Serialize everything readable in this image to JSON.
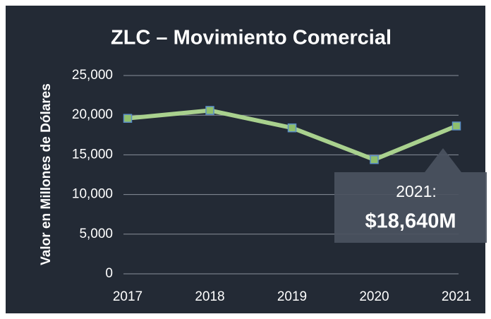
{
  "chart_data": {
    "type": "line",
    "title": "ZLC – Movimiento Comercial",
    "y_axis_label": "Valor en Millones de Dólares",
    "categories": [
      "2017",
      "2018",
      "2019",
      "2020",
      "2021"
    ],
    "series": [
      {
        "name": "Movimiento Comercial",
        "color": "#a9d18e",
        "marker_color": "#8fbf6c",
        "marker_edge": "#5b8fc7",
        "values": [
          19600,
          20600,
          18400,
          14400,
          18640
        ]
      }
    ],
    "ylim": [
      0,
      25000
    ],
    "yticks": [
      {
        "value": 0,
        "label": "0"
      },
      {
        "value": 5000,
        "label": "5,000"
      },
      {
        "value": 10000,
        "label": "10,000"
      },
      {
        "value": 15000,
        "label": "15,000"
      },
      {
        "value": 20000,
        "label": "20,000"
      },
      {
        "value": 25000,
        "label": "25,000"
      }
    ],
    "grid": true,
    "annotation": {
      "label": "2021:",
      "value_text": "$18,640M"
    }
  }
}
